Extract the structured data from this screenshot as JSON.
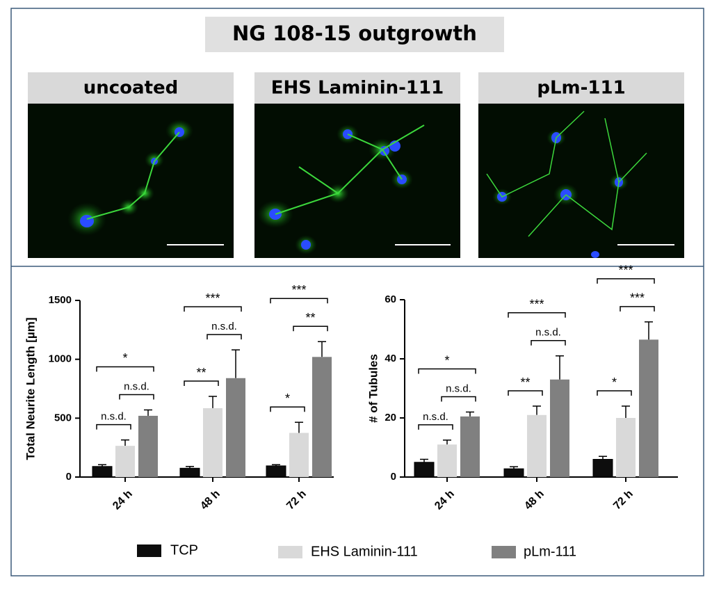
{
  "title": "NG 108-15 outgrowth",
  "panels": [
    {
      "label": "uncoated"
    },
    {
      "label": "EHS Laminin-111"
    },
    {
      "label": "pLm-111"
    }
  ],
  "chart_data": [
    {
      "type": "bar",
      "y_label": "Total Neurite Length [µm]",
      "categories": [
        "24 h",
        "48 h",
        "72 h"
      ],
      "series": [
        {
          "name": "TCP",
          "color": "#0d0d0d",
          "values": [
            90,
            75,
            95
          ],
          "errors": [
            15,
            15,
            10
          ]
        },
        {
          "name": "EHS Laminin-111",
          "color": "#d9d9d9",
          "values": [
            265,
            585,
            375
          ],
          "errors": [
            50,
            100,
            90
          ]
        },
        {
          "name": "pLm-111",
          "color": "#808080",
          "values": [
            520,
            840,
            1020
          ],
          "errors": [
            50,
            240,
            130
          ]
        }
      ],
      "ylim": [
        0,
        1500
      ],
      "yticks": [
        0,
        500,
        1000,
        1500
      ],
      "annotations": [
        {
          "text": "n.s.d.",
          "category": 0,
          "between": [
            0,
            1
          ]
        },
        {
          "text": "n.s.d.",
          "category": 0,
          "between": [
            1,
            2
          ]
        },
        {
          "text": "*",
          "category": 0,
          "between": [
            0,
            2
          ]
        },
        {
          "text": "**",
          "category": 1,
          "between": [
            0,
            1
          ]
        },
        {
          "text": "n.s.d.",
          "category": 1,
          "between": [
            1,
            2
          ]
        },
        {
          "text": "***",
          "category": 1,
          "between": [
            0,
            2
          ]
        },
        {
          "text": "*",
          "category": 2,
          "between": [
            0,
            1
          ]
        },
        {
          "text": "**",
          "category": 2,
          "between": [
            1,
            2
          ]
        },
        {
          "text": "***",
          "category": 2,
          "between": [
            0,
            2
          ]
        }
      ]
    },
    {
      "type": "bar",
      "y_label": "# of Tubules",
      "categories": [
        "24 h",
        "48 h",
        "72 h"
      ],
      "series": [
        {
          "name": "TCP",
          "color": "#0d0d0d",
          "values": [
            5,
            2.8,
            6
          ],
          "errors": [
            1,
            0.7,
            1
          ]
        },
        {
          "name": "EHS Laminin-111",
          "color": "#d9d9d9",
          "values": [
            11,
            21,
            20
          ],
          "errors": [
            1.5,
            3,
            4
          ]
        },
        {
          "name": "pLm-111",
          "color": "#808080",
          "values": [
            20.5,
            33,
            46.5
          ],
          "errors": [
            1.5,
            8,
            6
          ]
        }
      ],
      "ylim": [
        0,
        60
      ],
      "yticks": [
        0,
        20,
        40,
        60
      ],
      "annotations": [
        {
          "text": "n.s.d.",
          "category": 0,
          "between": [
            0,
            1
          ]
        },
        {
          "text": "n.s.d.",
          "category": 0,
          "between": [
            1,
            2
          ]
        },
        {
          "text": "*",
          "category": 0,
          "between": [
            0,
            2
          ]
        },
        {
          "text": "**",
          "category": 1,
          "between": [
            0,
            1
          ]
        },
        {
          "text": "n.s.d.",
          "category": 1,
          "between": [
            1,
            2
          ]
        },
        {
          "text": "***",
          "category": 1,
          "between": [
            0,
            2
          ]
        },
        {
          "text": "*",
          "category": 2,
          "between": [
            0,
            1
          ]
        },
        {
          "text": "***",
          "category": 2,
          "between": [
            1,
            2
          ]
        },
        {
          "text": "***",
          "category": 2,
          "between": [
            0,
            2
          ]
        }
      ]
    }
  ]
}
